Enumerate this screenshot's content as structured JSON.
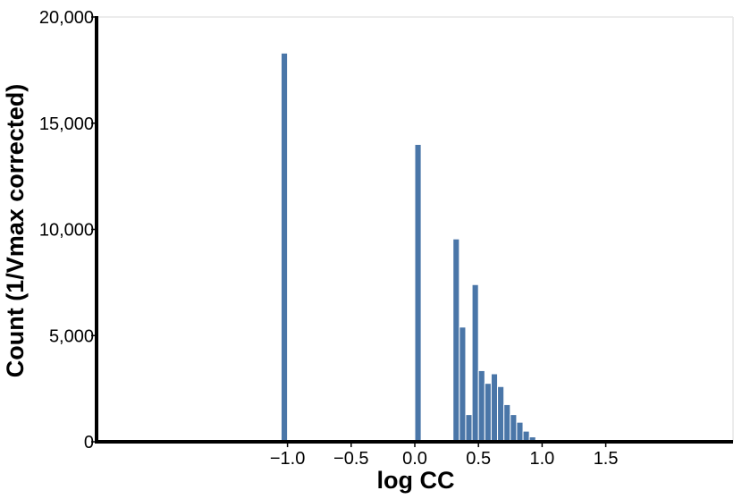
{
  "chart_data": {
    "type": "bar",
    "title": "",
    "xlabel": "log CC",
    "ylabel": "Count (1/Vmax corrected)",
    "xlim": [
      -2.5,
      2.5
    ],
    "ylim": [
      0,
      20000
    ],
    "x_ticks": [
      -1.0,
      -0.5,
      0.0,
      0.5,
      1.0,
      1.5
    ],
    "x_tick_labels": [
      "−1.0",
      "−0.5",
      "0.0",
      "0.5",
      "1.0",
      "1.5"
    ],
    "y_ticks": [
      0,
      5000,
      10000,
      15000,
      20000
    ],
    "y_tick_labels": [
      "0",
      "5,000",
      "10,000",
      "15,000",
      "20,000"
    ],
    "grid": false,
    "bar_color": "#4a76a8",
    "bins": [
      {
        "x0": -1.05,
        "x1": -1.0,
        "value": 18300
      },
      {
        "x0": 0.0,
        "x1": 0.05,
        "value": 14000
      },
      {
        "x0": 0.05,
        "x1": 0.15,
        "value": 80
      },
      {
        "x0": 0.3,
        "x1": 0.35,
        "value": 9550
      },
      {
        "x0": 0.35,
        "x1": 0.4,
        "value": 5400
      },
      {
        "x0": 0.4,
        "x1": 0.45,
        "value": 1280
      },
      {
        "x0": 0.45,
        "x1": 0.5,
        "value": 7400
      },
      {
        "x0": 0.5,
        "x1": 0.55,
        "value": 3350
      },
      {
        "x0": 0.55,
        "x1": 0.6,
        "value": 2750
      },
      {
        "x0": 0.6,
        "x1": 0.65,
        "value": 3200
      },
      {
        "x0": 0.65,
        "x1": 0.7,
        "value": 2600
      },
      {
        "x0": 0.7,
        "x1": 0.75,
        "value": 1750
      },
      {
        "x0": 0.75,
        "x1": 0.8,
        "value": 1280
      },
      {
        "x0": 0.8,
        "x1": 0.85,
        "value": 920
      },
      {
        "x0": 0.85,
        "x1": 0.9,
        "value": 500
      },
      {
        "x0": 0.9,
        "x1": 0.95,
        "value": 230
      },
      {
        "x0": 0.95,
        "x1": 1.0,
        "value": 90
      },
      {
        "x0": 1.0,
        "x1": 1.05,
        "value": 50
      }
    ]
  }
}
